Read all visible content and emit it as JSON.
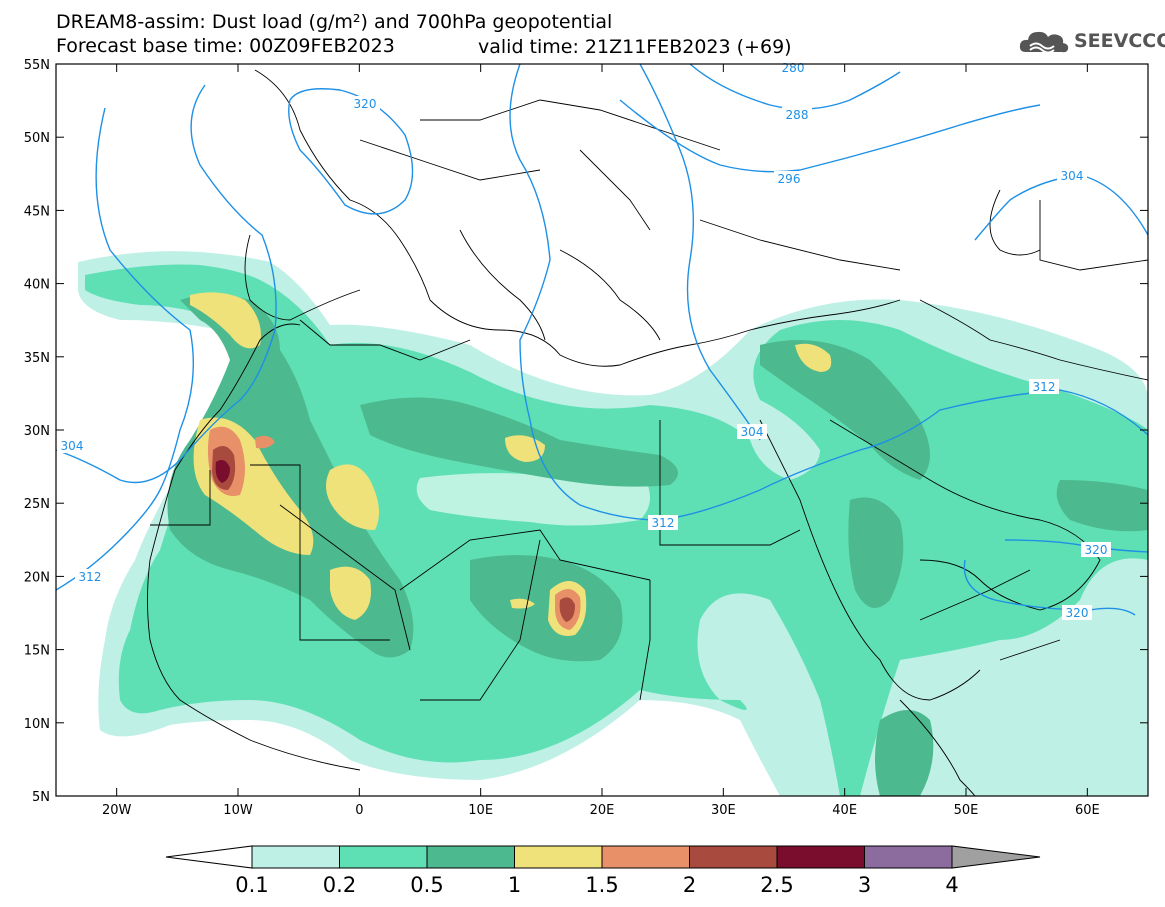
{
  "header": {
    "title_line1": "DREAM8-assim: Dust load (g/m²) and 700hPa geopotential",
    "title_line2_left": "Forecast base time: 00Z09FEB2023",
    "title_line2_right": "valid time: 21Z11FEB2023 (+69)",
    "logo_text": "SEEVCCC",
    "logo_icon": "cloud-icon"
  },
  "map": {
    "lon_range": [
      -25,
      65
    ],
    "lat_range": [
      5,
      55
    ],
    "lon_ticks": [
      "20W",
      "10W",
      "0",
      "10E",
      "20E",
      "30E",
      "40E",
      "50E",
      "60E"
    ],
    "lat_ticks": [
      "55N",
      "50N",
      "45N",
      "40N",
      "35N",
      "30N",
      "25N",
      "20N",
      "15N",
      "10N",
      "5N"
    ],
    "contour_color": "#1e90e6",
    "contour_labels": [
      "280",
      "288",
      "296",
      "304",
      "304",
      "304",
      "312",
      "312",
      "312",
      "320",
      "320",
      "320"
    ]
  },
  "colorbar": {
    "levels": [
      "0.1",
      "0.2",
      "0.5",
      "1",
      "1.5",
      "2",
      "2.5",
      "3",
      "4"
    ],
    "colors": [
      "#bff0e6",
      "#5fe0b4",
      "#4db98f",
      "#f0e27a",
      "#e89068",
      "#a94a3e",
      "#7a0c2e",
      "#8c6b9e",
      "#a0a0a0"
    ]
  }
}
